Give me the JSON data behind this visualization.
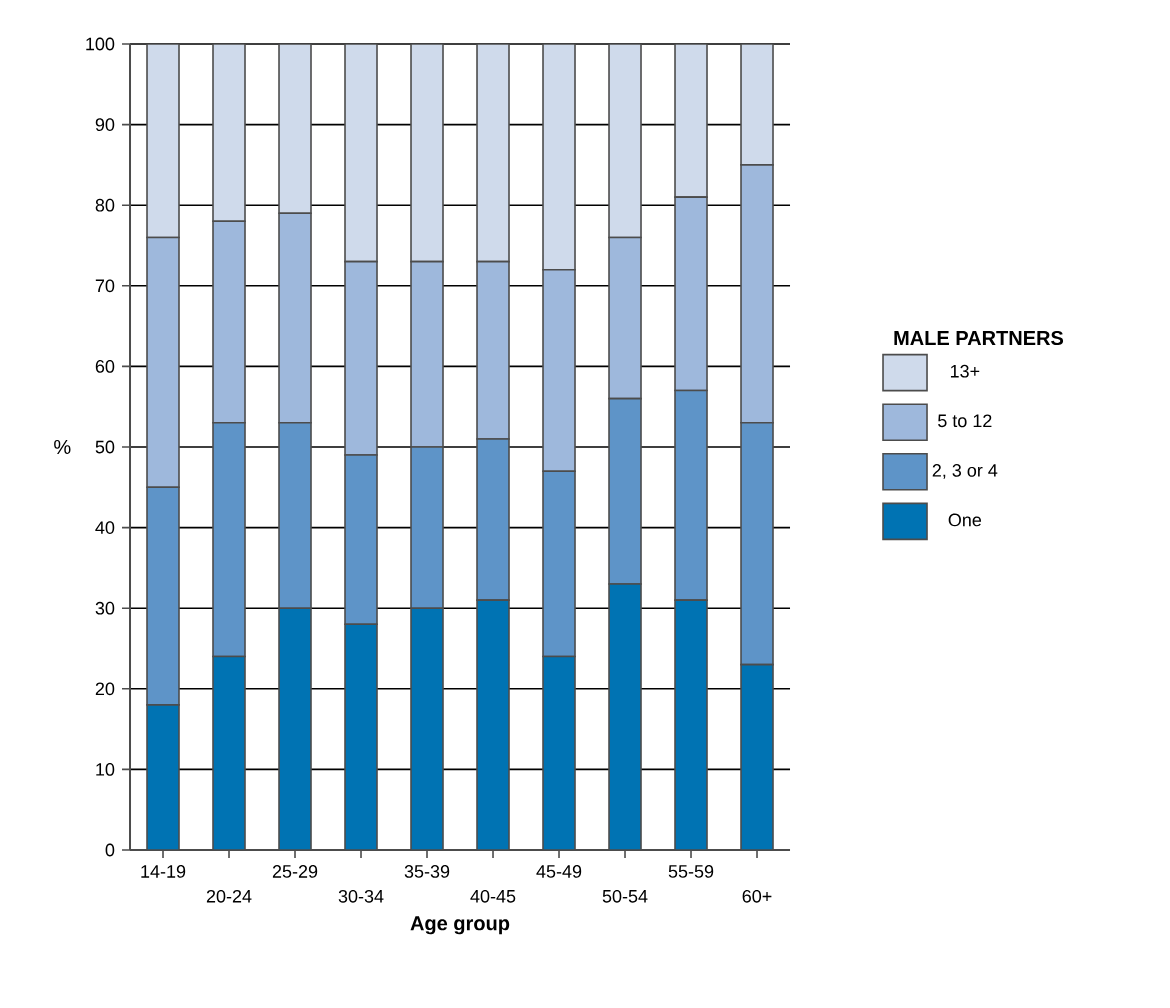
{
  "chart_data": {
    "type": "bar",
    "stacked": true,
    "xlabel": "Age group",
    "ylabel": "%",
    "legend_title": "MALE PARTNERS",
    "categories": [
      "14-19",
      "20-24",
      "25-29",
      "30-34",
      "35-39",
      "40-45",
      "45-49",
      "50-54",
      "55-59",
      "60+"
    ],
    "series": [
      {
        "name": "One",
        "color": "#0073b3",
        "values": [
          18,
          24,
          30,
          28,
          30,
          31,
          24,
          33,
          31,
          23
        ]
      },
      {
        "name": "2, 3 or 4",
        "color": "#5e94c8",
        "values": [
          27,
          29,
          23,
          21,
          20,
          20,
          23,
          23,
          26,
          30
        ]
      },
      {
        "name": "5 to 12",
        "color": "#9eb8dc",
        "values": [
          31,
          25,
          26,
          24,
          23,
          22,
          25,
          20,
          24,
          32
        ]
      },
      {
        "name": "13+",
        "color": "#cfdaeb",
        "values": [
          24,
          22,
          21,
          27,
          27,
          27,
          28,
          24,
          19,
          15
        ]
      }
    ],
    "ylim": [
      0,
      100
    ],
    "yticks": [
      0,
      10,
      20,
      30,
      40,
      50,
      60,
      70,
      80,
      90,
      100
    ],
    "grid": "y",
    "legend": "right"
  }
}
